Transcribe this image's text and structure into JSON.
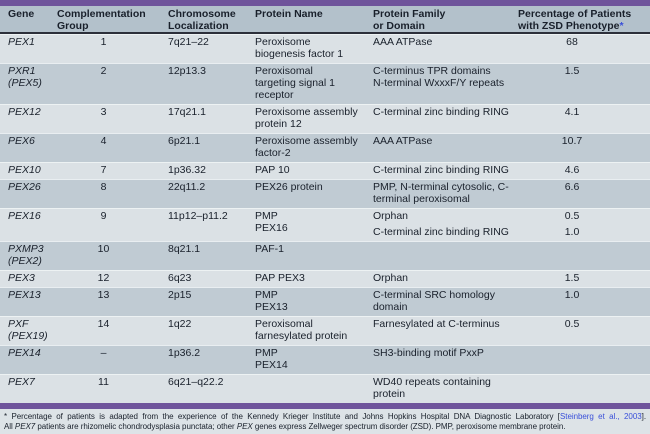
{
  "table": {
    "columns": [
      {
        "lines": [
          "Gene"
        ]
      },
      {
        "lines": [
          "Complementation",
          "Group"
        ]
      },
      {
        "lines": [
          "Chromosome",
          "Localization"
        ]
      },
      {
        "lines": [
          "Protein Name"
        ]
      },
      {
        "lines": [
          "Protein Family",
          "or Domain"
        ]
      },
      {
        "lines": [
          "Percentage of Patients",
          "with ZSD Phenotype"
        ],
        "asterisk": "*"
      }
    ],
    "rows": [
      {
        "gene": [
          "PEX1"
        ],
        "group": "1",
        "localization": "7q21–22",
        "protein_name": [
          "Peroxisome",
          "biogenesis factor 1"
        ],
        "entries": [
          {
            "family": [
              "AAA ATPase"
            ],
            "pct": "68"
          }
        ]
      },
      {
        "gene": [
          "PXR1",
          "(PEX5)"
        ],
        "group": "2",
        "localization": "12p13.3",
        "protein_name": [
          "Peroxisomal",
          "targeting signal 1",
          "receptor"
        ],
        "entries": [
          {
            "family": [
              "C-terminus TPR domains",
              "N-terminal WxxxF/Y repeats"
            ],
            "pct": "1.5"
          }
        ]
      },
      {
        "gene": [
          "PEX12"
        ],
        "group": "3",
        "localization": "17q21.1",
        "protein_name": [
          "Peroxisome assembly",
          "protein 12"
        ],
        "entries": [
          {
            "family": [
              "C-terminal zinc binding RING"
            ],
            "pct": "4.1"
          }
        ]
      },
      {
        "gene": [
          "PEX6"
        ],
        "group": "4",
        "localization": "6p21.1",
        "protein_name": [
          "Peroxisome assembly",
          "factor-2"
        ],
        "entries": [
          {
            "family": [
              "AAA ATPase"
            ],
            "pct": "10.7"
          }
        ]
      },
      {
        "gene": [
          "PEX10"
        ],
        "group": "7",
        "localization": "1p36.32",
        "protein_name": [
          "PAP 10"
        ],
        "entries": [
          {
            "family": [
              "C-terminal zinc binding RING"
            ],
            "pct": "4.6"
          }
        ]
      },
      {
        "gene": [
          "PEX26"
        ],
        "group": "8",
        "localization": "22q11.2",
        "protein_name": [
          "PEX26 protein"
        ],
        "entries": [
          {
            "family": [
              "PMP, N-terminal cytosolic, C-",
              "terminal peroxisomal"
            ],
            "pct": "6.6"
          }
        ]
      },
      {
        "gene": [
          "PEX16"
        ],
        "group": "9",
        "localization": "11p12–p11.2",
        "protein_name": [
          "PMP",
          "PEX16"
        ],
        "entries": [
          {
            "family": [
              "Orphan"
            ],
            "pct": "0.5"
          },
          {
            "family": [
              "C-terminal zinc binding RING"
            ],
            "pct": "1.0"
          }
        ]
      },
      {
        "gene": [
          "PXMP3",
          "(PEX2)"
        ],
        "group": "10",
        "localization": "8q21.1",
        "protein_name": [
          "PAF-1"
        ],
        "entries": []
      },
      {
        "gene": [
          "PEX3"
        ],
        "group": "12",
        "localization": "6q23",
        "protein_name": [
          "PAP PEX3"
        ],
        "entries": [
          {
            "family": [
              "Orphan"
            ],
            "pct": "1.5"
          }
        ]
      },
      {
        "gene": [
          "PEX13"
        ],
        "group": "13",
        "localization": "2p15",
        "protein_name": [
          "PMP",
          "PEX13"
        ],
        "entries": [
          {
            "family": [
              "C-terminal SRC homology",
              "domain"
            ],
            "pct": "1.0"
          }
        ]
      },
      {
        "gene": [
          "PXF",
          "(PEX19)"
        ],
        "group": "14",
        "localization": "1q22",
        "protein_name": [
          "Peroxisomal",
          "farnesylated protein"
        ],
        "entries": [
          {
            "family": [
              "Farnesylated at C-terminus"
            ],
            "pct": "0.5"
          }
        ]
      },
      {
        "gene": [
          "PEX14"
        ],
        "group": "–",
        "localization": "1p36.2",
        "protein_name": [
          "PMP",
          "PEX14"
        ],
        "entries": [
          {
            "family": [
              "SH3-binding motif PxxP"
            ],
            "pct": ""
          }
        ]
      },
      {
        "gene": [
          "PEX7"
        ],
        "group": "11",
        "localization": "6q21–q22.2",
        "protein_name": [],
        "entries": [
          {
            "family": [
              "WD40 repeats containing",
              "protein"
            ],
            "pct": ""
          }
        ]
      }
    ]
  },
  "footnote": {
    "line1": [
      {
        "text": "* Percentage of patients is adapted from the experience of the Kennedy Krieger Institute and Johns Hopkins Hospital DNA Diagnostic Laboratory ["
      },
      {
        "text": "Steinberg et al., 2003",
        "style": "link"
      },
      {
        "text": "]."
      }
    ],
    "line2": [
      {
        "text": "All "
      },
      {
        "text": "PEX7",
        "style": "italic"
      },
      {
        "text": " patients are rhizomelic chondrodysplasia punctata; other "
      },
      {
        "text": "PEX",
        "style": "italic"
      },
      {
        "text": " genes express Zellweger spectrum disorder (ZSD). PMP, peroxisome membrane protein."
      }
    ]
  },
  "colors": {
    "accent_bar": "#6f549b",
    "header_bg": "#b3c1cb",
    "row_light": "#dbe1e5",
    "row_dark": "#c0cbd3",
    "footnote_bg": "#dde3e7",
    "text": "#19202b",
    "link": "#3a50d9"
  }
}
